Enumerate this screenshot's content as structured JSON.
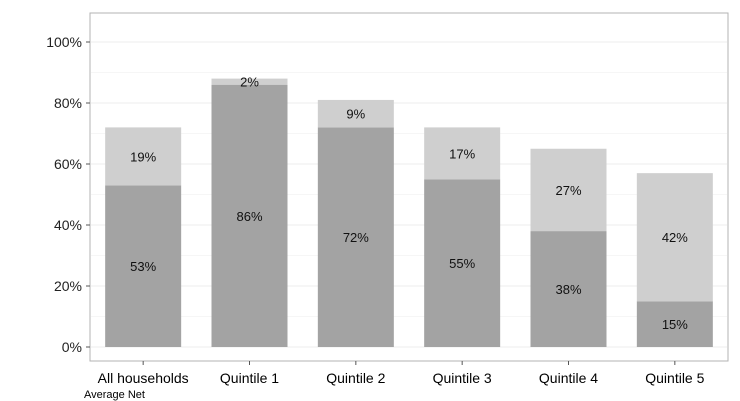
{
  "chart_data": {
    "type": "bar",
    "stacked": true,
    "categories": [
      "All households",
      "Quintile 1",
      "Quintile 2",
      "Quintile 3",
      "Quintile 4",
      "Quintile 5"
    ],
    "series": [
      {
        "values": [
          53,
          86,
          72,
          55,
          38,
          15
        ],
        "labels": [
          "53%",
          "86%",
          "72%",
          "55%",
          "38%",
          "15%"
        ],
        "color": "#a3a3a3"
      },
      {
        "values": [
          19,
          2,
          9,
          17,
          27,
          42
        ],
        "labels": [
          "19%",
          "2%",
          "9%",
          "17%",
          "27%",
          "42%"
        ],
        "color": "#cfcfcf"
      }
    ],
    "y_ticks": [
      "0%",
      "20%",
      "40%",
      "60%",
      "80%",
      "100%"
    ],
    "ylim": [
      0,
      105
    ],
    "grid": true,
    "legend": "none"
  },
  "footnote": "Average Net"
}
